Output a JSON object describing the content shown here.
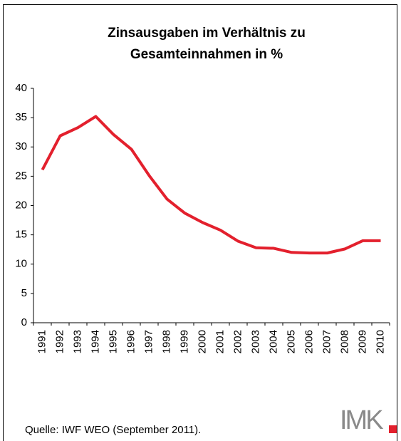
{
  "chart_data": {
    "type": "line",
    "title": [
      "Zinsausgaben im Verhältnis zu",
      "Gesamteinnahmen in %"
    ],
    "categories": [
      "1991",
      "1992",
      "1993",
      "1994",
      "1995",
      "1996",
      "1997",
      "1998",
      "1999",
      "2000",
      "2001",
      "2002",
      "2003",
      "2004",
      "2005",
      "2006",
      "2007",
      "2008",
      "2009",
      "2010"
    ],
    "series": [
      {
        "color": "#e3202d",
        "values": [
          26.1,
          31.9,
          33.3,
          35.2,
          32.1,
          29.6,
          25.1,
          21.1,
          18.7,
          17.1,
          15.8,
          13.9,
          12.8,
          12.7,
          12.0,
          11.9,
          11.9,
          12.6,
          14.0,
          14.0
        ]
      }
    ],
    "ylim": [
      0,
      40
    ],
    "yticks": [
      0,
      5,
      10,
      15,
      20,
      25,
      30,
      35,
      40
    ],
    "source": "Quelle: IWF WEO (September 2011).",
    "logo": "IMK"
  }
}
